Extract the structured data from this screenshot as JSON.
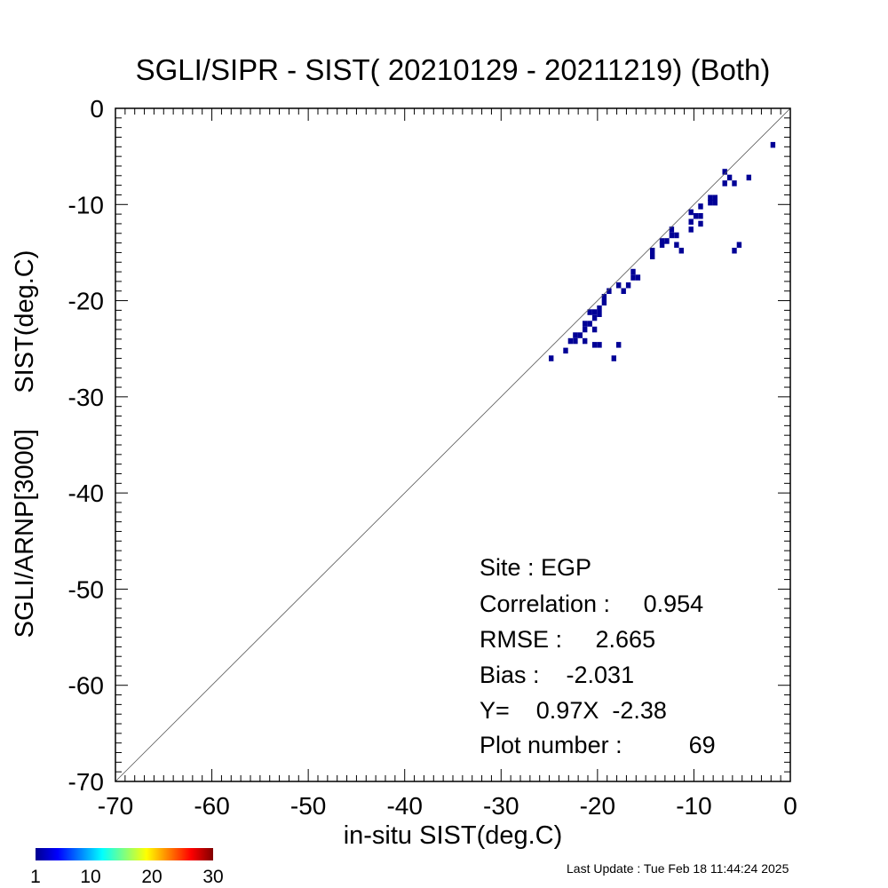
{
  "chart_data": {
    "type": "heatmap",
    "title": "SGLI/SIPR - SIST( 20210129 - 20211219) (Both)",
    "xlabel": "in-situ SIST(deg.C)",
    "ylabel": "SGLI/ARNP[3000]     SIST(deg.C)",
    "xlim": [
      -70,
      0
    ],
    "ylim": [
      -70,
      0
    ],
    "x_ticks": [
      "-70",
      "-60",
      "-50",
      "-40",
      "-30",
      "-20",
      "-10",
      "0"
    ],
    "y_ticks": [
      "0",
      "-10",
      "-20",
      "-30",
      "-40",
      "-50",
      "-60",
      "-70"
    ],
    "one_to_one_line": true,
    "bin_color": "#000096",
    "points": [
      [
        -1.8,
        -3.8
      ],
      [
        -6.8,
        -6.6
      ],
      [
        -6.3,
        -7.2
      ],
      [
        -6.8,
        -7.8
      ],
      [
        -5.8,
        -7.8
      ],
      [
        -4.3,
        -7.2
      ],
      [
        -8.3,
        -9.3
      ],
      [
        -7.8,
        -9.3
      ],
      [
        -8.3,
        -9.8
      ],
      [
        -7.8,
        -9.8
      ],
      [
        -9.3,
        -10.2
      ],
      [
        -10.3,
        -10.8
      ],
      [
        -9.3,
        -11.2
      ],
      [
        -9.8,
        -11.2
      ],
      [
        -10.3,
        -11.8
      ],
      [
        -9.3,
        -12.0
      ],
      [
        -10.3,
        -12.6
      ],
      [
        -12.3,
        -12.6
      ],
      [
        -11.8,
        -13.2
      ],
      [
        -12.3,
        -13.2
      ],
      [
        -12.8,
        -13.8
      ],
      [
        -13.3,
        -13.8
      ],
      [
        -11.8,
        -14.2
      ],
      [
        -13.3,
        -14.2
      ],
      [
        -11.3,
        -14.8
      ],
      [
        -14.3,
        -14.8
      ],
      [
        -14.3,
        -15.4
      ],
      [
        -5.3,
        -14.2
      ],
      [
        -5.8,
        -14.8
      ],
      [
        -16.3,
        -17.0
      ],
      [
        -16.3,
        -17.6
      ],
      [
        -15.8,
        -17.6
      ],
      [
        -16.8,
        -18.4
      ],
      [
        -17.8,
        -18.4
      ],
      [
        -17.3,
        -19.0
      ],
      [
        -18.8,
        -19.0
      ],
      [
        -19.3,
        -19.6
      ],
      [
        -19.3,
        -20.2
      ],
      [
        -19.8,
        -20.8
      ],
      [
        -20.3,
        -21.2
      ],
      [
        -19.8,
        -21.4
      ],
      [
        -20.8,
        -21.2
      ],
      [
        -20.3,
        -21.8
      ],
      [
        -20.8,
        -22.4
      ],
      [
        -21.3,
        -22.4
      ],
      [
        -21.3,
        -23.0
      ],
      [
        -20.3,
        -23.0
      ],
      [
        -21.8,
        -23.6
      ],
      [
        -22.3,
        -23.6
      ],
      [
        -22.3,
        -24.2
      ],
      [
        -21.3,
        -24.2
      ],
      [
        -22.8,
        -24.2
      ],
      [
        -19.8,
        -24.6
      ],
      [
        -17.8,
        -24.6
      ],
      [
        -20.3,
        -24.6
      ],
      [
        -23.3,
        -25.2
      ],
      [
        -18.3,
        -26.0
      ],
      [
        -24.8,
        -26.0
      ]
    ],
    "colorbar": {
      "min": 1,
      "max": 30,
      "tick_labels": [
        "1",
        "10",
        "20",
        "30"
      ]
    },
    "annotations": {
      "site": "Site : EGP",
      "correlation": "Correlation :     0.954",
      "rmse": "RMSE :     2.665",
      "bias": "Bias :    -2.031",
      "regression": "Y=    0.97X  -2.38",
      "plot_number": "Plot number :          69"
    }
  },
  "footer": {
    "last_update": "Last Update : Tue Feb 18 11:44:24 2025"
  }
}
